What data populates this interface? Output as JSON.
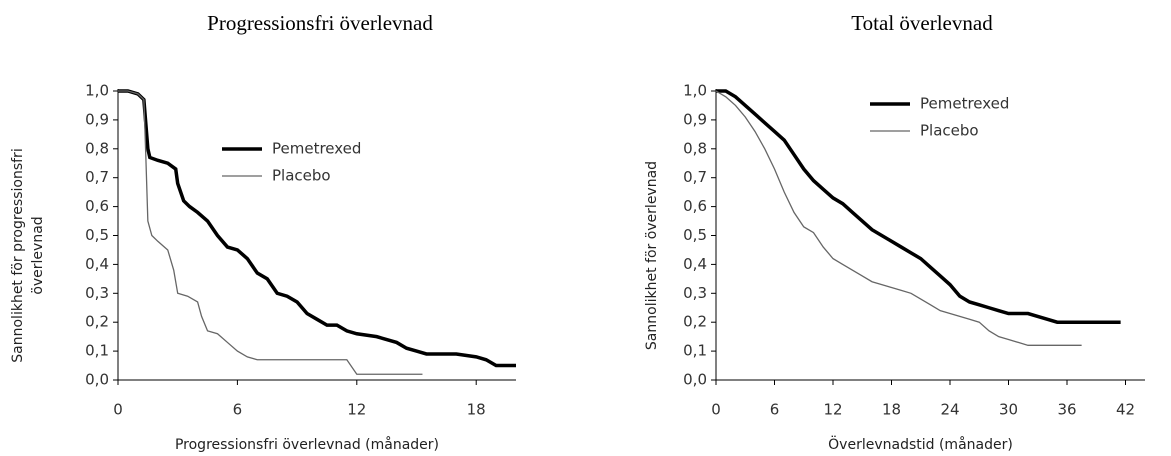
{
  "chart_data": [
    {
      "type": "line",
      "title": "Progressionsfri överlevnad",
      "xlabel": "Progressionsfri överlevnad (månader)",
      "ylabel": [
        "Sannolikhet för progressionsfri",
        "överlevnad"
      ],
      "xlim": [
        0,
        20
      ],
      "ylim": [
        0,
        1
      ],
      "xticks": [
        0,
        6,
        12,
        18
      ],
      "yticks": [
        {
          "value": 0,
          "label": "0,0"
        },
        {
          "value": 0.1,
          "label": "0,1"
        },
        {
          "value": 0.2,
          "label": "0,2"
        },
        {
          "value": 0.3,
          "label": "0,3"
        },
        {
          "value": 0.4,
          "label": "0,4"
        },
        {
          "value": 0.5,
          "label": "0,5"
        },
        {
          "value": 0.6,
          "label": "0,6"
        },
        {
          "value": 0.7,
          "label": "0,7"
        },
        {
          "value": 0.8,
          "label": "0,8"
        },
        {
          "value": 0.9,
          "label": "0,9"
        },
        {
          "value": 1,
          "label": "1,0"
        }
      ],
      "series": [
        {
          "name": "Pemetrexed",
          "color": "#000000",
          "linewidth": 3.5,
          "x": [
            0,
            0.5,
            1.0,
            1.3,
            1.5,
            1.6,
            2.0,
            2.5,
            2.9,
            3.0,
            3.3,
            3.6,
            4.0,
            4.5,
            4.8,
            5.0,
            5.5,
            6.0,
            6.5,
            7.0,
            7.5,
            8.0,
            8.5,
            9,
            9.5,
            10,
            10.5,
            11,
            11.5,
            12,
            13,
            14,
            14.5,
            15,
            15.5,
            17,
            18,
            18.5,
            19,
            20
          ],
          "values": [
            1.0,
            1.0,
            0.99,
            0.97,
            0.8,
            0.77,
            0.76,
            0.75,
            0.73,
            0.68,
            0.62,
            0.6,
            0.58,
            0.55,
            0.52,
            0.5,
            0.46,
            0.45,
            0.42,
            0.37,
            0.35,
            0.3,
            0.29,
            0.27,
            0.23,
            0.21,
            0.19,
            0.19,
            0.17,
            0.16,
            0.15,
            0.13,
            0.11,
            0.1,
            0.09,
            0.09,
            0.08,
            0.07,
            0.05,
            0.05
          ]
        },
        {
          "name": "Placebo",
          "color": "#666666",
          "linewidth": 1.3,
          "x": [
            0,
            0.5,
            1.0,
            1.3,
            1.4,
            1.5,
            1.7,
            2.0,
            2.5,
            2.8,
            3.0,
            3.5,
            4.0,
            4.2,
            4.5,
            5.0,
            5.5,
            6.0,
            6.5,
            7.0,
            8,
            11.5,
            12,
            15.3
          ],
          "values": [
            1.0,
            1.0,
            0.99,
            0.97,
            0.77,
            0.55,
            0.5,
            0.48,
            0.45,
            0.38,
            0.3,
            0.29,
            0.27,
            0.22,
            0.17,
            0.16,
            0.13,
            0.1,
            0.08,
            0.07,
            0.07,
            0.07,
            0.02,
            0.02
          ]
        }
      ]
    },
    {
      "type": "line",
      "title": "Total överlevnad",
      "xlabel": "Överlevnadstid (månader)",
      "ylabel": [
        "Sannolikhet för överlevnad"
      ],
      "xlim": [
        0,
        44
      ],
      "ylim": [
        0,
        1
      ],
      "xticks": [
        0,
        6,
        12,
        18,
        24,
        30,
        36,
        42
      ],
      "yticks": [
        {
          "value": 0,
          "label": "0,0"
        },
        {
          "value": 0.1,
          "label": "0,1"
        },
        {
          "value": 0.2,
          "label": "0,2"
        },
        {
          "value": 0.3,
          "label": "0,3"
        },
        {
          "value": 0.4,
          "label": "0,4"
        },
        {
          "value": 0.5,
          "label": "0,5"
        },
        {
          "value": 0.6,
          "label": "0,6"
        },
        {
          "value": 0.7,
          "label": "0,7"
        },
        {
          "value": 0.8,
          "label": "0,8"
        },
        {
          "value": 0.9,
          "label": "0,9"
        },
        {
          "value": 1,
          "label": "1,0"
        }
      ],
      "series": [
        {
          "name": "Pemetrexed",
          "color": "#000000",
          "linewidth": 3.5,
          "x": [
            0,
            1,
            2,
            3,
            4,
            5,
            6,
            7,
            8,
            9,
            10,
            11,
            12,
            13,
            14,
            15,
            16,
            17,
            18,
            19,
            20,
            21,
            22,
            23,
            24,
            25,
            26,
            27,
            28,
            29,
            30,
            32,
            33,
            34,
            35,
            38,
            41.5
          ],
          "values": [
            1.0,
            1.0,
            0.98,
            0.95,
            0.92,
            0.89,
            0.86,
            0.83,
            0.78,
            0.73,
            0.69,
            0.66,
            0.63,
            0.61,
            0.58,
            0.55,
            0.52,
            0.5,
            0.48,
            0.46,
            0.44,
            0.42,
            0.39,
            0.36,
            0.33,
            0.29,
            0.27,
            0.26,
            0.25,
            0.24,
            0.23,
            0.23,
            0.22,
            0.21,
            0.2,
            0.2,
            0.2
          ]
        },
        {
          "name": "Placebo",
          "color": "#666666",
          "linewidth": 1.3,
          "x": [
            0,
            1,
            2,
            3,
            4,
            5,
            6,
            7,
            8,
            9,
            10,
            11,
            12,
            13,
            14,
            15,
            16,
            17,
            18,
            19,
            20,
            21,
            22,
            23,
            24,
            25,
            26,
            27,
            28,
            29,
            30,
            31,
            32,
            37.5
          ],
          "values": [
            1.0,
            0.98,
            0.95,
            0.91,
            0.86,
            0.8,
            0.73,
            0.65,
            0.58,
            0.53,
            0.51,
            0.46,
            0.42,
            0.4,
            0.38,
            0.36,
            0.34,
            0.33,
            0.32,
            0.31,
            0.3,
            0.28,
            0.26,
            0.24,
            0.23,
            0.22,
            0.21,
            0.2,
            0.17,
            0.15,
            0.14,
            0.13,
            0.12,
            0.12
          ]
        }
      ]
    }
  ]
}
